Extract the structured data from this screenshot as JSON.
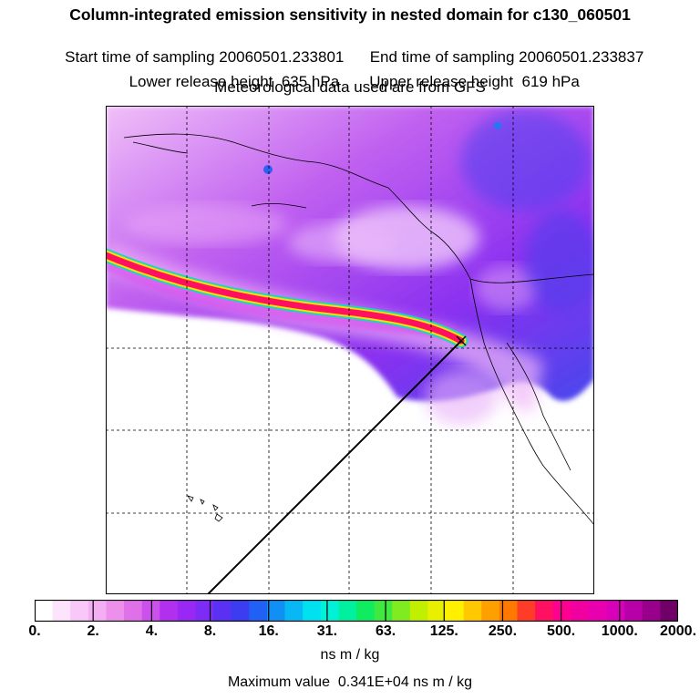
{
  "header": {
    "title": "Column-integrated emission sensitivity in nested domain for c130_060501",
    "start_time": "Start time of sampling 20060501.233801",
    "end_time": "End time of sampling 20060501.233837",
    "lower_height": "Lower release height  635 hPa",
    "upper_height": "Upper release height  619 hPa",
    "met_data": "Meteorological data used are from GFS"
  },
  "colorbar": {
    "tick_labels": [
      "0.",
      "2.",
      "4.",
      "8.",
      "16.",
      "31.",
      "63.",
      "125.",
      "250.",
      "500.",
      "1000.",
      "2000."
    ],
    "unit": "ns m / kg",
    "colors": [
      "#ffffff",
      "#fce4fc",
      "#f8c8f8",
      "#f4aef4",
      "#ec90ec",
      "#e070e8",
      "#cc50ec",
      "#b030ee",
      "#9a28f4",
      "#7c2cf4",
      "#5a30f2",
      "#3c3cf0",
      "#2060f4",
      "#1090f4",
      "#08b8f4",
      "#00e0f0",
      "#00f0d8",
      "#00f0a0",
      "#10ec60",
      "#40e840",
      "#80ec20",
      "#c0f000",
      "#e8f000",
      "#fff000",
      "#ffc800",
      "#ffa000",
      "#ff7800",
      "#ff3c28",
      "#ff1060",
      "#ff0090",
      "#f000a0",
      "#e800b0",
      "#d800b8",
      "#b800a8",
      "#98008c",
      "#700068"
    ]
  },
  "max_value": "Maximum value  0.341E+04 ns m / kg",
  "map": {
    "background_colors": [
      "#ffffff",
      "#f0c0f8",
      "#c060f0",
      "#8a30f0",
      "#4848ec"
    ],
    "plume_colors": [
      "#ff1060",
      "#ffdc00",
      "#18d8c0",
      "#e050e8"
    ]
  }
}
